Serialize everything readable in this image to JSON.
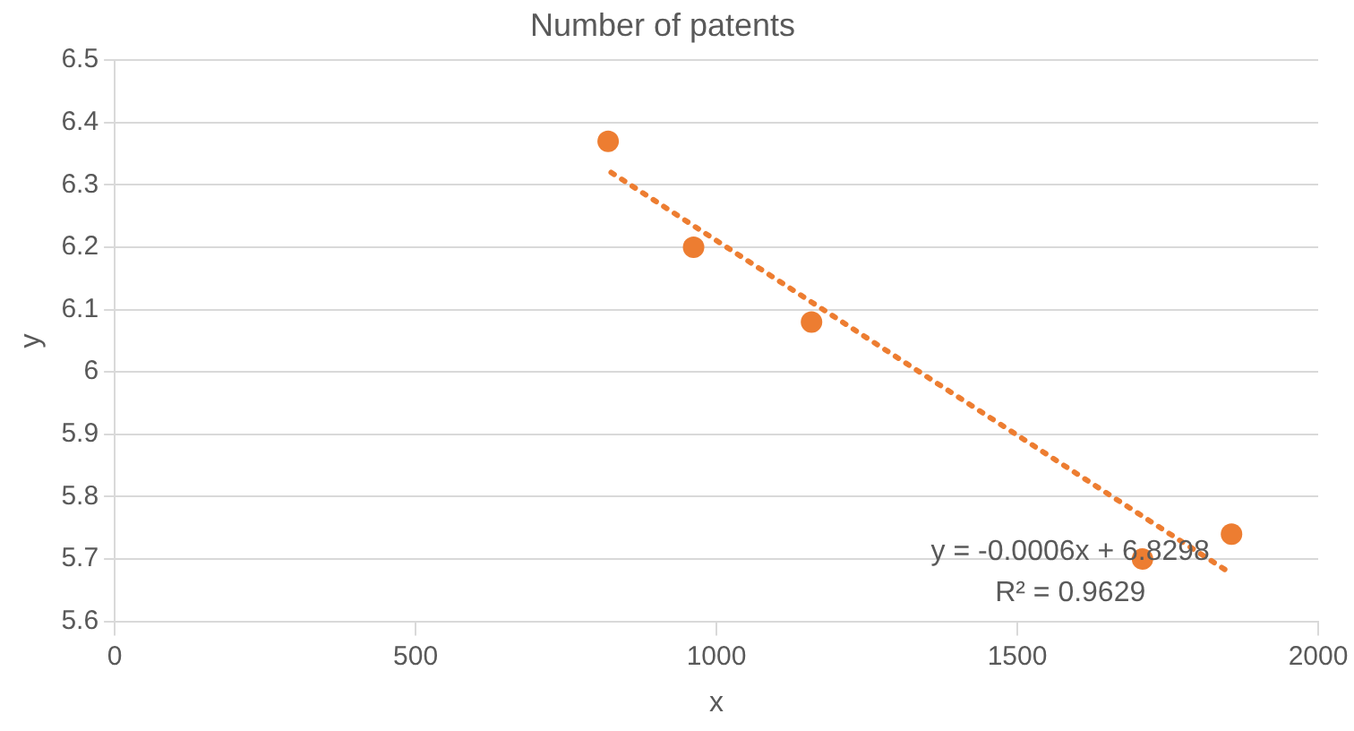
{
  "chart_data": {
    "type": "scatter",
    "title": "Number of patents",
    "xlabel": "x",
    "ylabel": "y",
    "xlim": [
      0,
      2000
    ],
    "xticks": [
      0,
      500,
      1000,
      1500,
      2000
    ],
    "ylim": [
      5.6,
      6.5
    ],
    "yticks": [
      5.6,
      5.7,
      5.8,
      5.9,
      6,
      6.1,
      6.2,
      6.3,
      6.4,
      6.5
    ],
    "grid": "y",
    "legend": false,
    "series": [
      {
        "color": "#ed7d31",
        "marker": "circle",
        "x": [
          820,
          962,
          1158,
          1708,
          1856
        ],
        "values": [
          6.37,
          6.2,
          6.08,
          5.7,
          5.74
        ]
      },
      {
        "type": "line",
        "color": "#ed7d31",
        "line_style": "dotted",
        "marker": "none",
        "x": [
          825,
          1850
        ],
        "values": [
          6.32,
          5.68
        ]
      }
    ],
    "annotations": [
      "y = -0.0006x + 6.8298",
      "R² = 0.9629"
    ]
  }
}
